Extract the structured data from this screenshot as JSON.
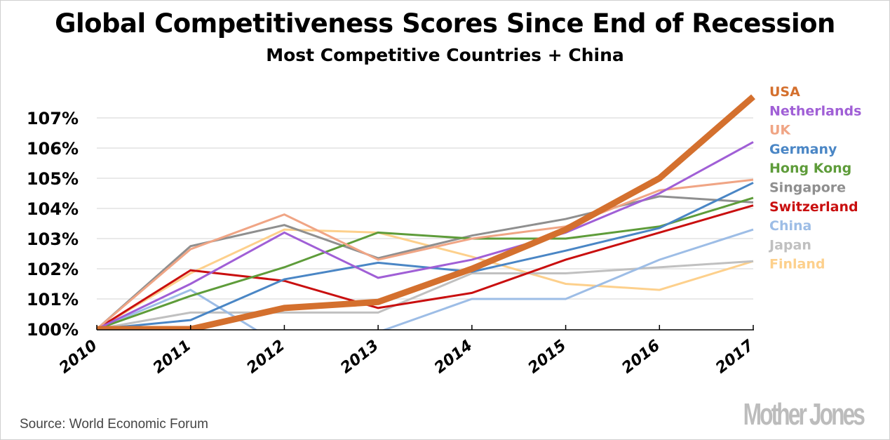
{
  "chart_data": {
    "type": "line",
    "title": "Global Competitiveness Scores Since End of Recession",
    "subtitle": "Most Competitive Countries + China",
    "xlabel": "",
    "ylabel": "",
    "x": [
      "2010",
      "2011",
      "2012",
      "2013",
      "2014",
      "2015",
      "2016",
      "2017"
    ],
    "ylim": [
      100,
      107.6
    ],
    "yticks": [
      100,
      101,
      102,
      103,
      104,
      105,
      106,
      107
    ],
    "ytick_labels": [
      "100%",
      "101%",
      "102%",
      "103%",
      "104%",
      "105%",
      "106%",
      "107%"
    ],
    "grid": true,
    "legend_position": "right",
    "series": [
      {
        "name": "USA",
        "color": "#d4702e",
        "emphasis": true,
        "values": [
          100,
          100,
          100.7,
          100.9,
          102.0,
          103.3,
          105.0,
          107.7
        ]
      },
      {
        "name": "Netherlands",
        "color": "#a05fd6",
        "values": [
          100,
          101.5,
          103.2,
          101.7,
          102.3,
          103.2,
          104.5,
          106.2
        ]
      },
      {
        "name": "UK",
        "color": "#f0a585",
        "values": [
          100,
          102.65,
          103.8,
          102.3,
          103.0,
          103.4,
          104.6,
          104.95
        ]
      },
      {
        "name": "Germany",
        "color": "#4a86c5",
        "values": [
          100,
          100.3,
          101.65,
          102.2,
          101.9,
          102.6,
          103.35,
          104.85
        ]
      },
      {
        "name": "Hong Kong",
        "color": "#5e9c3a",
        "values": [
          100,
          101.1,
          102.05,
          103.2,
          103.0,
          103.0,
          103.4,
          104.35
        ]
      },
      {
        "name": "Singapore",
        "color": "#8f8f8f",
        "values": [
          100,
          102.75,
          103.45,
          102.35,
          103.1,
          103.65,
          104.4,
          104.2
        ]
      },
      {
        "name": "Switzerland",
        "color": "#c90f0f",
        "values": [
          100,
          101.95,
          101.6,
          100.7,
          101.2,
          102.3,
          103.2,
          104.1
        ]
      },
      {
        "name": "China",
        "color": "#9dbde6",
        "values": [
          100,
          101.3,
          99.4,
          99.9,
          101.0,
          101.0,
          102.3,
          103.3
        ]
      },
      {
        "name": "Japan",
        "color": "#c0c0c0",
        "values": [
          100,
          100.55,
          100.55,
          100.55,
          101.85,
          101.85,
          102.05,
          102.25
        ]
      },
      {
        "name": "Finland",
        "color": "#fdd08c",
        "values": [
          100,
          101.85,
          103.3,
          103.2,
          102.4,
          101.5,
          101.3,
          102.25
        ]
      }
    ]
  },
  "footer": {
    "source": "Source: World Economic Forum",
    "logo": "Mother Jones"
  }
}
